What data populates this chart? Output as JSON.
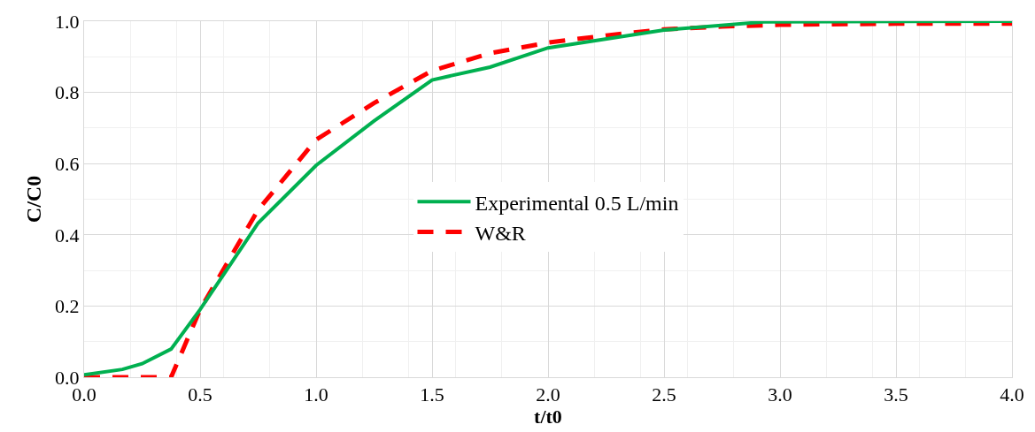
{
  "chart_data": {
    "type": "line",
    "xlabel": "t/t0",
    "ylabel": "C/C0",
    "xlim": [
      0,
      4
    ],
    "ylim": [
      0,
      1
    ],
    "xticks": [
      {
        "value": 0,
        "label": "0.0"
      },
      {
        "value": 0.5,
        "label": "0.5"
      },
      {
        "value": 1,
        "label": "1.0"
      },
      {
        "value": 1.5,
        "label": "1.5"
      },
      {
        "value": 2,
        "label": "2.0"
      },
      {
        "value": 2.5,
        "label": "2.5"
      },
      {
        "value": 3,
        "label": "3.0"
      },
      {
        "value": 3.5,
        "label": "3.5"
      },
      {
        "value": 4,
        "label": "4.0"
      }
    ],
    "yticks": [
      {
        "value": 0,
        "label": "0.0"
      },
      {
        "value": 0.2,
        "label": "0.2"
      },
      {
        "value": 0.4,
        "label": "0.4"
      },
      {
        "value": 0.6,
        "label": "0.6"
      },
      {
        "value": 0.8,
        "label": "0.8"
      },
      {
        "value": 1,
        "label": "1.0"
      }
    ],
    "grid": true,
    "legend": "center",
    "marker": "none",
    "series": [
      {
        "name": "Experimental 0.5 L/min",
        "color": "#00b050",
        "line_style": "solid",
        "x": [
          0,
          0.165,
          0.25,
          0.375,
          0.5,
          0.75,
          1.0,
          1.25,
          1.5,
          1.75,
          2.0,
          2.5,
          2.93,
          4.0
        ],
        "values": [
          0.007,
          0.022,
          0.038,
          0.079,
          0.19,
          0.433,
          0.595,
          0.72,
          0.835,
          0.871,
          0.925,
          0.975,
          0.998,
          1.0
        ]
      },
      {
        "name": "W&R",
        "color": "#ff0000",
        "line_style": "dashed",
        "x": [
          0,
          0.375,
          0.5,
          0.75,
          1.0,
          1.25,
          1.5,
          1.75,
          2.0,
          2.25,
          2.5,
          2.75,
          3.0,
          3.5,
          4.0
        ],
        "values": [
          0,
          0,
          0.19,
          0.47,
          0.667,
          0.77,
          0.861,
          0.91,
          0.94,
          0.96,
          0.977,
          0.985,
          0.99,
          0.993,
          0.993
        ]
      }
    ]
  }
}
